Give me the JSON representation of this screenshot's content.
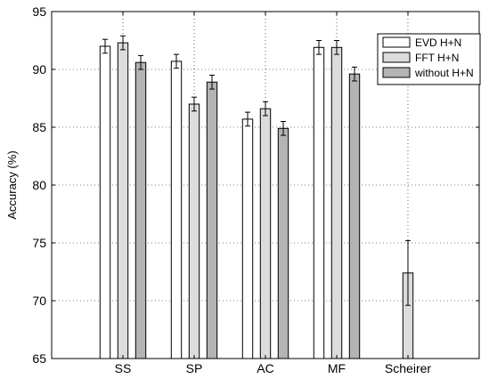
{
  "chart_data": {
    "type": "bar",
    "title": "",
    "xlabel": "",
    "ylabel": "Accuracy (%)",
    "ylim": [
      65,
      95
    ],
    "yticks": [
      65,
      70,
      75,
      80,
      85,
      90,
      95
    ],
    "grid": true,
    "legend_position": "top-right",
    "categories": [
      "SS",
      "SP",
      "AC",
      "MF",
      "Scheirer"
    ],
    "series": [
      {
        "name": "EVD H+N",
        "color": "#ffffff",
        "values": [
          92.0,
          90.7,
          85.7,
          91.9,
          null
        ],
        "errors": [
          0.6,
          0.6,
          0.6,
          0.6,
          null
        ]
      },
      {
        "name": "FFT H+N",
        "color": "#dcdcdc",
        "values": [
          92.3,
          87.0,
          86.6,
          91.9,
          72.4
        ],
        "errors": [
          0.6,
          0.6,
          0.6,
          0.6,
          2.8
        ]
      },
      {
        "name": "without H+N",
        "color": "#b4b4b4",
        "values": [
          90.6,
          88.9,
          84.9,
          89.6,
          null
        ],
        "errors": [
          0.6,
          0.6,
          0.6,
          0.6,
          null
        ]
      }
    ]
  }
}
